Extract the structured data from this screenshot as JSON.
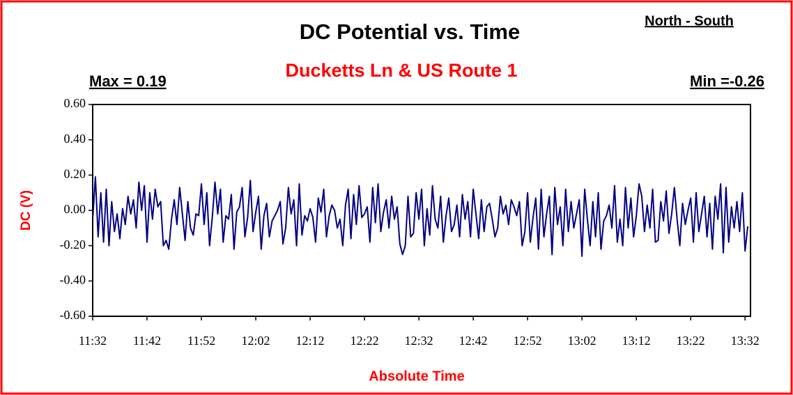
{
  "chart_data": {
    "type": "line",
    "title": "DC Potential vs. Time",
    "subtitle": "Ducketts Ln & US Route 1",
    "annotations": {
      "direction": "North - South",
      "max": "Max = 0.19",
      "min": "Min =-0.26"
    },
    "x_label": "Absolute Time",
    "y_label": "DC (V)",
    "color": "#000080",
    "xlim": [
      692,
      813
    ],
    "xticks": [
      {
        "value": 692,
        "label": "11:32"
      },
      {
        "value": 702,
        "label": "11:42"
      },
      {
        "value": 712,
        "label": "11:52"
      },
      {
        "value": 722,
        "label": "12:02"
      },
      {
        "value": 732,
        "label": "12:12"
      },
      {
        "value": 742,
        "label": "12:22"
      },
      {
        "value": 752,
        "label": "12:32"
      },
      {
        "value": 762,
        "label": "12:42"
      },
      {
        "value": 772,
        "label": "12:52"
      },
      {
        "value": 782,
        "label": "13:02"
      },
      {
        "value": 792,
        "label": "13:12"
      },
      {
        "value": 802,
        "label": "13:22"
      },
      {
        "value": 812,
        "label": "13:32"
      }
    ],
    "ylim": [
      -0.6,
      0.6
    ],
    "yticks": [
      {
        "value": 0.6,
        "label": "0.60"
      },
      {
        "value": 0.4,
        "label": "0.40"
      },
      {
        "value": 0.2,
        "label": "0.20"
      },
      {
        "value": 0,
        "label": "0.00"
      },
      {
        "value": -0.2,
        "label": "-0.20"
      },
      {
        "value": -0.4,
        "label": "-0.40"
      },
      {
        "value": -0.6,
        "label": "-0.60"
      }
    ],
    "x": [
      692,
      692.5,
      693,
      693.5,
      694,
      694.5,
      695,
      695.5,
      696,
      696.5,
      697,
      697.5,
      698,
      698.5,
      699,
      699.5,
      700,
      700.5,
      701,
      701.5,
      702,
      702.5,
      703,
      703.5,
      704,
      704.5,
      705,
      705.5,
      706,
      706.5,
      707,
      707.5,
      708,
      708.5,
      709,
      709.5,
      710,
      710.5,
      711,
      711.5,
      712,
      712.5,
      713,
      713.5,
      714,
      714.5,
      715,
      715.5,
      716,
      716.5,
      717,
      717.5,
      718,
      718.5,
      719,
      719.5,
      720,
      720.5,
      721,
      721.5,
      722,
      722.5,
      723,
      723.5,
      724,
      724.5,
      725,
      725.5,
      726,
      726.5,
      727,
      727.5,
      728,
      728.5,
      729,
      729.5,
      730,
      730.5,
      731,
      731.5,
      732,
      732.5,
      733,
      733.5,
      734,
      734.5,
      735,
      735.5,
      736,
      736.5,
      737,
      737.5,
      738,
      738.5,
      739,
      739.5,
      740,
      740.5,
      741,
      741.5,
      742,
      742.5,
      743,
      743.5,
      744,
      744.5,
      745,
      745.5,
      746,
      746.5,
      747,
      747.5,
      748,
      748.5,
      749,
      749.5,
      750,
      750.5,
      751,
      751.5,
      752,
      752.5,
      753,
      753.5,
      754,
      754.5,
      755,
      755.5,
      756,
      756.5,
      757,
      757.5,
      758,
      758.5,
      759,
      759.5,
      760,
      760.5,
      761,
      761.5,
      762,
      762.5,
      763,
      763.5,
      764,
      764.5,
      765,
      765.5,
      766,
      766.5,
      767,
      767.5,
      768,
      768.5,
      769,
      769.5,
      770,
      770.5,
      771,
      771.5,
      772,
      772.5,
      773,
      773.5,
      774,
      774.5,
      775,
      775.5,
      776,
      776.5,
      777,
      777.5,
      778,
      778.5,
      779,
      779.5,
      780,
      780.5,
      781,
      781.5,
      782,
      782.5,
      783,
      783.5,
      784,
      784.5,
      785,
      785.5,
      786,
      786.5,
      787,
      787.5,
      788,
      788.5,
      789,
      789.5,
      790,
      790.5,
      791,
      791.5,
      792,
      792.5,
      793,
      793.5,
      794,
      794.5,
      795,
      795.5,
      796,
      796.5,
      797,
      797.5,
      798,
      798.5,
      799,
      799.5,
      800,
      800.5,
      801,
      801.5,
      802,
      802.5,
      803,
      803.5,
      804,
      804.5,
      805,
      805.5,
      806,
      806.5,
      807,
      807.5,
      808,
      808.5,
      809,
      809.5,
      810,
      810.5,
      811,
      811.5,
      812,
      812.5
    ],
    "values": [
      -0.05,
      0.19,
      -0.15,
      0.1,
      -0.18,
      0.12,
      -0.2,
      0.05,
      -0.12,
      -0.02,
      -0.16,
      0.01,
      -0.08,
      0.08,
      -0.02,
      0.06,
      -0.1,
      0.16,
      0.0,
      0.14,
      -0.18,
      0.1,
      -0.05,
      0.12,
      0.02,
      0.05,
      -0.2,
      -0.17,
      -0.22,
      -0.05,
      0.06,
      -0.08,
      0.13,
      -0.02,
      -0.17,
      0.05,
      -0.1,
      -0.14,
      -0.02,
      -0.03,
      0.15,
      -0.08,
      0.1,
      -0.2,
      -0.04,
      0.16,
      -0.02,
      0.12,
      -0.18,
      -0.03,
      -0.05,
      0.09,
      -0.22,
      -0.01,
      0.02,
      0.13,
      -0.15,
      -0.04,
      0.17,
      -0.12,
      -0.01,
      0.08,
      -0.22,
      -0.03,
      0.04,
      -0.15,
      -0.06,
      -0.03,
      0.0,
      0.05,
      -0.19,
      -0.1,
      0.13,
      -0.02,
      0.06,
      -0.2,
      0.15,
      -0.14,
      -0.03,
      -0.06,
      0.01,
      -0.04,
      -0.18,
      0.07,
      -0.01,
      0.12,
      -0.15,
      -0.03,
      0.03,
      0.0,
      -0.1,
      -0.05,
      -0.2,
      0.03,
      0.12,
      -0.16,
      0.09,
      -0.08,
      0.14,
      -0.04,
      -0.02,
      0.02,
      -0.18,
      0.13,
      -0.07,
      0.15,
      -0.12,
      -0.01,
      0.06,
      -0.1,
      0.08,
      -0.05,
      0.02,
      -0.19,
      -0.25,
      -0.2,
      0.08,
      -0.15,
      -0.13,
      0.1,
      -0.05,
      0.12,
      -0.2,
      0.01,
      -0.14,
      0.14,
      -0.05,
      -0.1,
      0.08,
      -0.18,
      -0.03,
      0.07,
      -0.12,
      -0.08,
      0.03,
      -0.15,
      0.09,
      -0.05,
      0.05,
      -0.15,
      0.12,
      -0.02,
      -0.16,
      0.06,
      -0.12,
      0.02,
      0.04,
      -0.05,
      -0.15,
      -0.1,
      0.08,
      -0.02,
      0.03,
      -0.08,
      0.06,
      0.02,
      -0.03,
      0.05,
      -0.2,
      -0.12,
      0.1,
      -0.18,
      -0.04,
      0.07,
      -0.22,
      0.12,
      -0.15,
      -0.02,
      0.08,
      -0.25,
      0.13,
      -0.08,
      0.02,
      -0.2,
      0.12,
      -0.12,
      0.05,
      -0.1,
      -0.02,
      0.06,
      -0.26,
      0.12,
      -0.05,
      -0.2,
      0.05,
      -0.15,
      0.1,
      -0.22,
      -0.06,
      -0.03,
      0.03,
      -0.1,
      0.14,
      -0.18,
      -0.05,
      -0.2,
      0.13,
      -0.1,
      0.07,
      -0.15,
      -0.03,
      0.15,
      0.08,
      -0.12,
      0.03,
      -0.1,
      0.12,
      -0.18,
      -0.17,
      0.05,
      -0.06,
      0.11,
      -0.13,
      -0.02,
      0.13,
      -0.05,
      -0.2,
      0.04,
      -0.08,
      0.0,
      0.07,
      -0.18,
      0.1,
      -0.12,
      -0.02,
      0.08,
      -0.15,
      0.04,
      -0.22,
      0.08,
      -0.05,
      0.15,
      -0.24,
      0.13,
      -0.18,
      0.02,
      -0.1,
      0.05,
      -0.12,
      0.1,
      -0.23,
      -0.09
    ]
  }
}
